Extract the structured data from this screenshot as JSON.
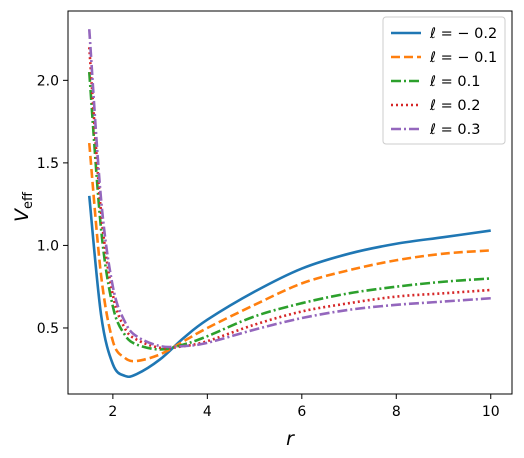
{
  "chart_data": {
    "type": "line",
    "title": "",
    "xlabel": "r",
    "ylabel_main": "V",
    "ylabel_sub": "eff",
    "xlim": [
      1.05,
      10.45
    ],
    "ylim": [
      0.1,
      2.42
    ],
    "xticks": [
      2,
      4,
      6,
      8,
      10
    ],
    "xtick_labels": [
      "2",
      "4",
      "6",
      "8",
      "10"
    ],
    "yticks": [
      0.5,
      1.0,
      1.5,
      2.0
    ],
    "ytick_labels": [
      "0.5",
      "1.0",
      "1.5",
      "2.0"
    ],
    "grid": false,
    "legend_position": "top-right",
    "x": [
      1.5,
      1.75,
      2.0,
      2.25,
      2.5,
      3.0,
      3.5,
      4.0,
      5.0,
      6.0,
      7.0,
      8.0,
      9.0,
      10.0
    ],
    "series": [
      {
        "name": "ℓ = − 0.2",
        "legend_label": "ℓ = − 0.2",
        "color": "#1f77b4",
        "dash": "",
        "values": [
          1.3,
          0.58,
          0.28,
          0.21,
          0.22,
          0.31,
          0.44,
          0.55,
          0.72,
          0.86,
          0.95,
          1.01,
          1.05,
          1.09
        ]
      },
      {
        "name": "ℓ = − 0.1",
        "legend_label": "ℓ = − 0.1",
        "color": "#ff7f0e",
        "dash": "9,4",
        "values": [
          1.62,
          0.82,
          0.42,
          0.32,
          0.3,
          0.34,
          0.42,
          0.5,
          0.64,
          0.77,
          0.85,
          0.91,
          0.95,
          0.97
        ]
      },
      {
        "name": "ℓ = 0.1",
        "legend_label": "ℓ = 0.1",
        "color": "#2ca02c",
        "dash": "10,3,2,3",
        "values": [
          2.05,
          1.1,
          0.63,
          0.46,
          0.4,
          0.37,
          0.4,
          0.45,
          0.57,
          0.65,
          0.71,
          0.75,
          0.78,
          0.8
        ]
      },
      {
        "name": "ℓ = 0.2",
        "legend_label": "ℓ = 0.2",
        "color": "#d62728",
        "dash": "2,3",
        "values": [
          2.2,
          1.2,
          0.7,
          0.5,
          0.43,
          0.38,
          0.39,
          0.42,
          0.52,
          0.6,
          0.65,
          0.69,
          0.71,
          0.73
        ]
      },
      {
        "name": "ℓ = 0.3",
        "legend_label": "ℓ = 0.3",
        "color": "#9467bd",
        "dash": "10,3,2,3",
        "values": [
          2.31,
          1.28,
          0.75,
          0.54,
          0.45,
          0.39,
          0.39,
          0.41,
          0.49,
          0.56,
          0.61,
          0.64,
          0.66,
          0.68
        ]
      }
    ]
  }
}
